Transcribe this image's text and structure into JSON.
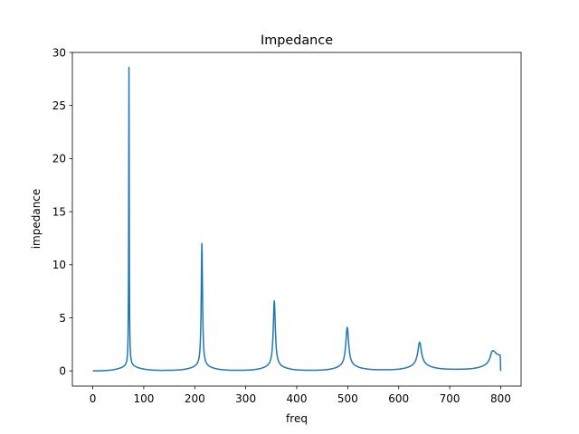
{
  "chart_data": {
    "type": "line",
    "title": "Impedance",
    "xlabel": "freq",
    "ylabel": "impedance",
    "xlim": [
      -40,
      840
    ],
    "ylim": [
      -1.43,
      30
    ],
    "xticks": [
      0,
      100,
      200,
      300,
      400,
      500,
      600,
      700,
      800
    ],
    "yticks": [
      0,
      5,
      10,
      15,
      20,
      25,
      30
    ],
    "xtick_labels": [
      "0",
      "100",
      "200",
      "300",
      "400",
      "500",
      "600",
      "700",
      "800"
    ],
    "ytick_labels": [
      "0",
      "5",
      "10",
      "15",
      "20",
      "25",
      "30"
    ],
    "grid": false,
    "legend": false,
    "line_color": "#1f77b4",
    "series": [
      {
        "resonance_peaks": [
          {
            "x": 71,
            "y": 28.6
          },
          {
            "x": 214,
            "y": 12.0
          },
          {
            "x": 356,
            "y": 6.6
          },
          {
            "x": 499,
            "y": 4.1
          },
          {
            "x": 641,
            "y": 2.7
          },
          {
            "x": 784,
            "y": 1.9
          }
        ],
        "minima": [
          {
            "x": 0,
            "y": 0.0
          },
          {
            "x": 142,
            "y": 0.05
          },
          {
            "x": 285,
            "y": 0.05
          },
          {
            "x": 428,
            "y": 0.05
          },
          {
            "x": 570,
            "y": 0.1
          },
          {
            "x": 713,
            "y": 0.15
          }
        ],
        "end_points": [
          {
            "x": 799,
            "y": 1.45
          },
          {
            "x": 800,
            "y": 0.0
          }
        ]
      }
    ]
  }
}
